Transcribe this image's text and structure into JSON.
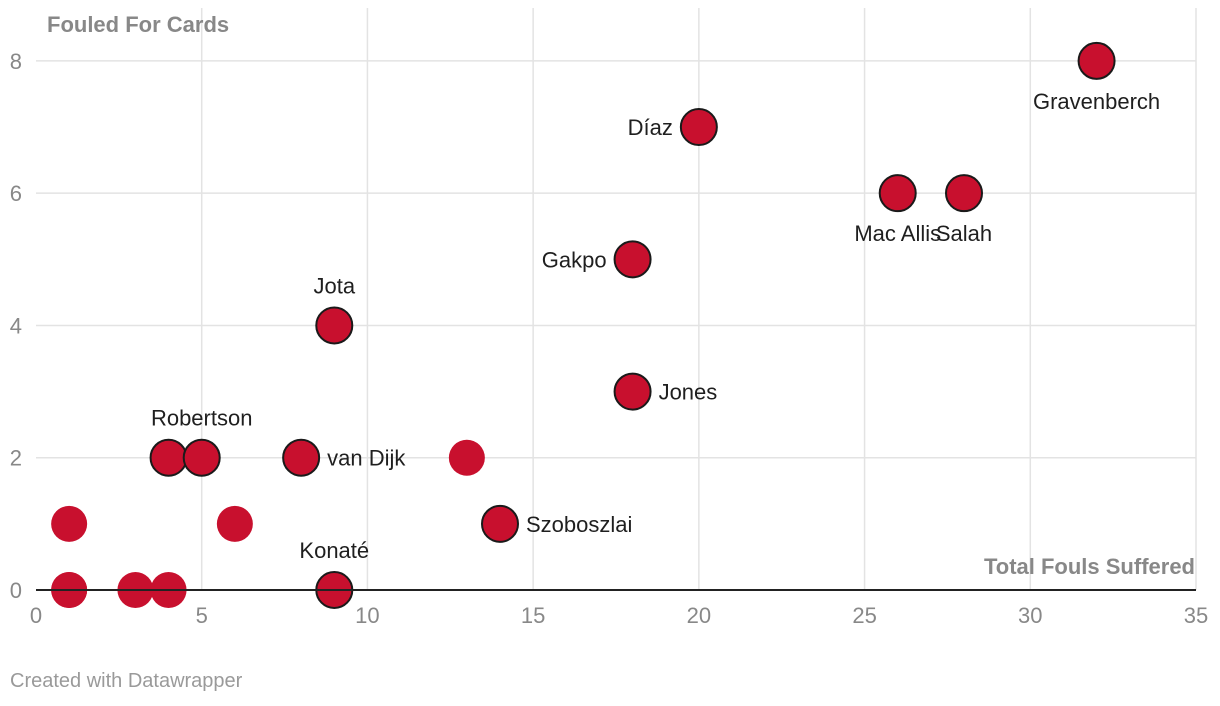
{
  "chart_data": {
    "type": "scatter",
    "ylabel": "Fouled For Cards",
    "xlabel": "Total Fouls Suffered",
    "xlim": [
      0,
      35
    ],
    "ylim": [
      0,
      8.8
    ],
    "xticks": [
      0,
      5,
      10,
      15,
      20,
      25,
      30,
      35
    ],
    "yticks": [
      0,
      2,
      4,
      6,
      8
    ],
    "grid": true,
    "marker_color": "#c8102e",
    "points": [
      {
        "x": 1,
        "y": 1,
        "label": ""
      },
      {
        "x": 1,
        "y": 0,
        "label": ""
      },
      {
        "x": 1,
        "y": 0,
        "label": ""
      },
      {
        "x": 3,
        "y": 0,
        "label": ""
      },
      {
        "x": 4,
        "y": 0,
        "label": ""
      },
      {
        "x": 6,
        "y": 1,
        "label": ""
      },
      {
        "x": 13,
        "y": 2,
        "label": ""
      },
      {
        "x": 9,
        "y": 0,
        "label": "Konaté",
        "label_pos": "top"
      },
      {
        "x": 4,
        "y": 2,
        "label": "",
        "label_pos": "top"
      },
      {
        "x": 5,
        "y": 2,
        "label": "Robertson",
        "label_pos": "top"
      },
      {
        "x": 8,
        "y": 2,
        "label": "van Dijk",
        "label_pos": "right"
      },
      {
        "x": 14,
        "y": 1,
        "label": "Szoboszlai",
        "label_pos": "right"
      },
      {
        "x": 9,
        "y": 4,
        "label": "Jota",
        "label_pos": "top"
      },
      {
        "x": 18,
        "y": 3,
        "label": "Jones",
        "label_pos": "right"
      },
      {
        "x": 18,
        "y": 5,
        "label": "Gakpo",
        "label_pos": "left"
      },
      {
        "x": 20,
        "y": 7,
        "label": "Díaz",
        "label_pos": "left"
      },
      {
        "x": 26,
        "y": 6,
        "label": "Mac Allis",
        "label_pos": "bottom"
      },
      {
        "x": 28,
        "y": 6,
        "label": "Salah",
        "label_pos": "bottom"
      },
      {
        "x": 32,
        "y": 8,
        "label": "Gravenberch",
        "label_pos": "bottom"
      }
    ]
  },
  "footer": {
    "credit": "Created with Datawrapper"
  }
}
